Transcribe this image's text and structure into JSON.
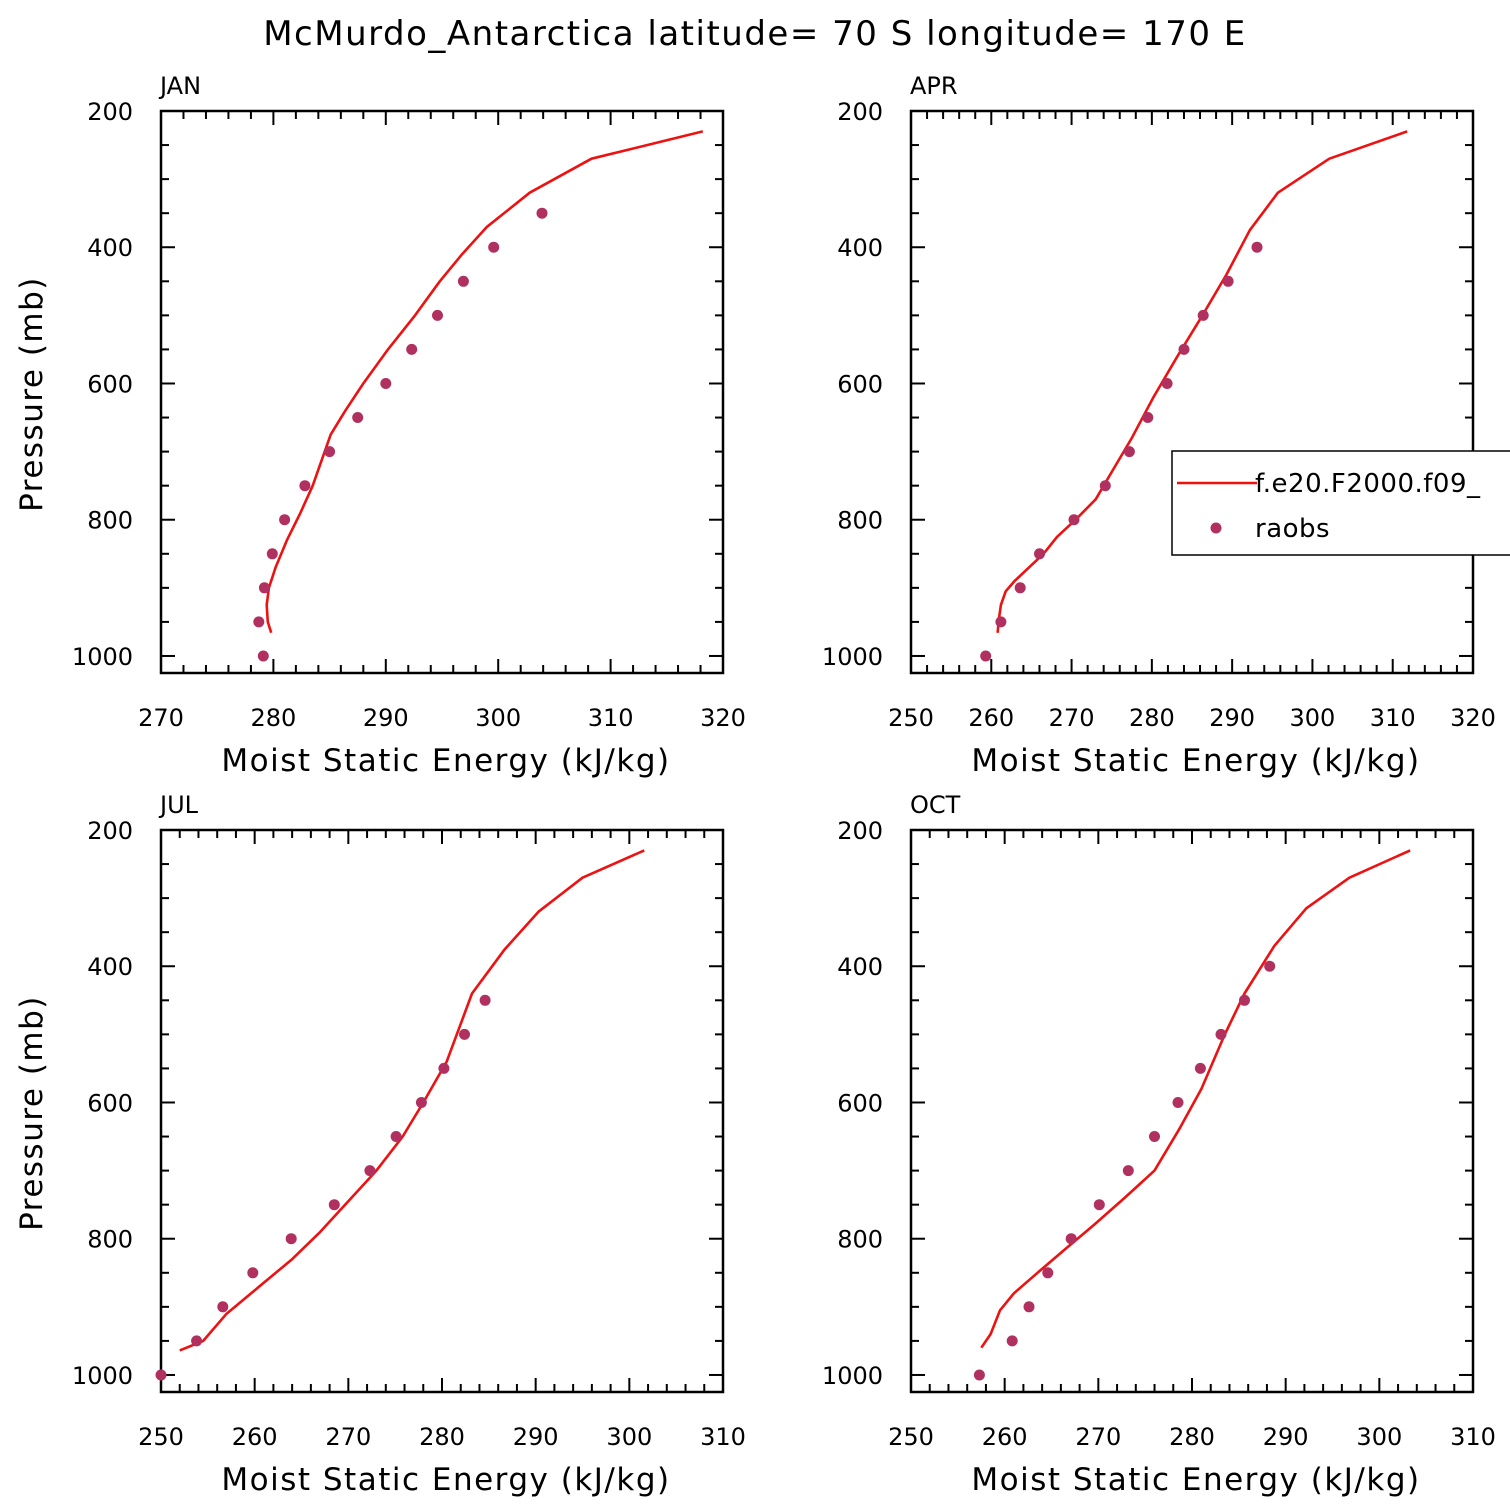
{
  "figure_title": "McMurdo_Antarctica  latitude= 70 S longitude= 170 E",
  "colors": {
    "model": "#ee1111",
    "obs": "#b03060",
    "axis": "#000000"
  },
  "legend": {
    "model_label": "f.e20.F2000.f09_",
    "obs_label": "raobs",
    "placement": "right-middle (APR panel)"
  },
  "chart_data": [
    {
      "type": "line",
      "panel": "JAN",
      "title": "JAN",
      "xlabel": "Moist Static Energy (kJ/kg)",
      "ylabel": "Pressure (mb)",
      "xlim": [
        270,
        320
      ],
      "ylim": [
        1025,
        200
      ],
      "xticks": [
        270,
        280,
        290,
        300,
        310,
        320
      ],
      "yticks": [
        200,
        400,
        600,
        800,
        1000
      ],
      "series": [
        {
          "name": "f.e20.F2000.f09_",
          "kind": "line",
          "x": [
            279.8,
            279.5,
            279.4,
            279.6,
            280.2,
            281.2,
            282.4,
            283.5,
            285.1,
            286.4,
            288.0,
            290.2,
            292.6,
            294.8,
            296.8,
            299.0,
            302.8,
            308.3,
            318.2
          ],
          "y": [
            966,
            950,
            925,
            900,
            870,
            830,
            790,
            750,
            675,
            640,
            600,
            550,
            500,
            450,
            410,
            370,
            320,
            270,
            230
          ]
        },
        {
          "name": "raobs",
          "kind": "scatter",
          "x": [
            279.1,
            278.7,
            279.2,
            279.9,
            281.0,
            282.8,
            285.0,
            287.5,
            290.0,
            292.3,
            294.6,
            296.9,
            299.6,
            303.9
          ],
          "y": [
            1000,
            950,
            900,
            850,
            800,
            750,
            700,
            650,
            600,
            550,
            500,
            450,
            400,
            350
          ]
        }
      ]
    },
    {
      "type": "line",
      "panel": "APR",
      "title": "APR",
      "xlabel": "Moist Static Energy (kJ/kg)",
      "ylabel": "",
      "xlim": [
        250,
        320
      ],
      "ylim": [
        1025,
        200
      ],
      "xticks": [
        250,
        260,
        270,
        280,
        290,
        300,
        310,
        320
      ],
      "yticks": [
        200,
        400,
        600,
        800,
        1000
      ],
      "series": [
        {
          "name": "f.e20.F2000.f09_",
          "kind": "line",
          "x": [
            260.8,
            260.9,
            261.2,
            261.8,
            262.9,
            264.7,
            266.5,
            268.2,
            270.5,
            273.0,
            275.0,
            277.5,
            280.2,
            283.2,
            286.3,
            289.3,
            292.2,
            295.7,
            302.1,
            311.8
          ],
          "y": [
            966,
            950,
            925,
            905,
            890,
            870,
            850,
            825,
            800,
            770,
            730,
            680,
            620,
            560,
            500,
            440,
            375,
            320,
            270,
            230
          ]
        },
        {
          "name": "raobs",
          "kind": "scatter",
          "x": [
            259.3,
            261.2,
            263.6,
            266.0,
            270.3,
            274.2,
            277.2,
            279.5,
            281.9,
            284.0,
            286.4,
            289.5,
            293.1
          ],
          "y": [
            1000,
            950,
            900,
            850,
            800,
            750,
            700,
            650,
            600,
            550,
            500,
            450,
            400
          ]
        }
      ]
    },
    {
      "type": "line",
      "panel": "JUL",
      "title": "JUL",
      "xlabel": "Moist Static Energy (kJ/kg)",
      "ylabel": "Pressure (mb)",
      "xlim": [
        250,
        310
      ],
      "ylim": [
        1025,
        200
      ],
      "xticks": [
        250,
        260,
        270,
        280,
        290,
        300,
        310
      ],
      "yticks": [
        200,
        400,
        600,
        800,
        1000
      ],
      "series": [
        {
          "name": "f.e20.F2000.f09_",
          "kind": "line",
          "x": [
            252.0,
            254.5,
            257.0,
            260.5,
            264.0,
            267.0,
            270.0,
            273.0,
            275.8,
            278.0,
            280.5,
            283.2,
            286.7,
            290.3,
            295.0,
            301.6
          ],
          "y": [
            964,
            950,
            910,
            870,
            830,
            790,
            745,
            700,
            650,
            600,
            540,
            440,
            375,
            320,
            270,
            230
          ]
        },
        {
          "name": "raobs",
          "kind": "scatter",
          "x": [
            250.0,
            253.8,
            256.6,
            259.8,
            263.9,
            268.5,
            272.3,
            275.1,
            277.8,
            280.2,
            282.4,
            284.6
          ],
          "y": [
            1000,
            950,
            900,
            850,
            800,
            750,
            700,
            650,
            600,
            550,
            500,
            450
          ]
        }
      ]
    },
    {
      "type": "line",
      "panel": "OCT",
      "title": "OCT",
      "xlabel": "Moist Static Energy (kJ/kg)",
      "ylabel": "",
      "xlim": [
        250,
        310
      ],
      "ylim": [
        1025,
        200
      ],
      "xticks": [
        250,
        260,
        270,
        280,
        290,
        300,
        310
      ],
      "yticks": [
        200,
        400,
        600,
        800,
        1000
      ],
      "series": [
        {
          "name": "f.e20.F2000.f09_",
          "kind": "line",
          "x": [
            257.5,
            258.5,
            259.5,
            261.0,
            263.5,
            266.5,
            269.5,
            272.8,
            276.0,
            278.6,
            281.0,
            283.5,
            285.6,
            288.8,
            292.2,
            296.8,
            303.3
          ],
          "y": [
            960,
            940,
            905,
            880,
            850,
            815,
            780,
            740,
            700,
            640,
            580,
            500,
            440,
            370,
            315,
            270,
            230
          ]
        },
        {
          "name": "raobs",
          "kind": "scatter",
          "x": [
            257.3,
            260.8,
            262.6,
            264.6,
            267.1,
            270.1,
            273.2,
            276.0,
            278.5,
            280.9,
            283.1,
            285.6,
            288.3
          ],
          "y": [
            1000,
            950,
            900,
            850,
            800,
            750,
            700,
            650,
            600,
            550,
            500,
            450,
            400
          ]
        }
      ]
    }
  ]
}
